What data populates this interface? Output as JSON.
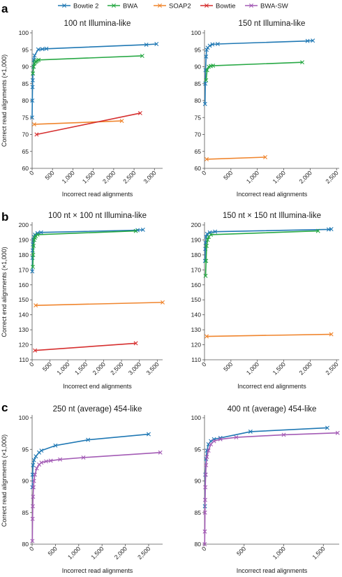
{
  "legend": [
    {
      "name": "Bowtie 2",
      "color": "#1f78b4"
    },
    {
      "name": "BWA",
      "color": "#27a844"
    },
    {
      "name": "SOAP2",
      "color": "#f0852d"
    },
    {
      "name": "Bowtie",
      "color": "#d62f2f"
    },
    {
      "name": "BWA-SW",
      "color": "#a35bb5"
    }
  ],
  "panel_labels": [
    "a",
    "b",
    "c"
  ],
  "chart_data": [
    {
      "type": "line",
      "panel": "a",
      "title": "100 nt Illumina-like",
      "xlabel": "Incorrect read alignments",
      "ylabel": "Correct read alignments (×1,000)",
      "xlim": [
        0,
        3200
      ],
      "ylim": [
        60,
        100
      ],
      "xticks": [
        0,
        500,
        1000,
        1500,
        2000,
        2500,
        3000
      ],
      "xtick_labels": [
        "0",
        "500",
        "1,000",
        "1,500",
        "2,000",
        "2,500",
        "3,000"
      ],
      "yticks": [
        60,
        65,
        70,
        75,
        80,
        85,
        90,
        95,
        100
      ],
      "ytick_labels": [
        "60",
        "65",
        "70",
        "75",
        "80",
        "85",
        "90",
        "95",
        "100"
      ],
      "series": [
        {
          "name": "Bowtie 2",
          "color": "#1f78b4",
          "x": [
            0,
            5,
            10,
            15,
            20,
            30,
            40,
            60,
            150,
            250,
            350,
            2800,
            3050
          ],
          "y": [
            75,
            80,
            84,
            86,
            88,
            90,
            92,
            93.3,
            95.1,
            95.2,
            95.3,
            96.5,
            96.7
          ]
        },
        {
          "name": "BWA",
          "color": "#27a844",
          "x": [
            20,
            40,
            60,
            80,
            100,
            130,
            160,
            2700
          ],
          "y": [
            88,
            90,
            91,
            91.4,
            91.6,
            91.8,
            92,
            93.2
          ]
        },
        {
          "name": "SOAP2",
          "color": "#f0852d",
          "x": [
            50,
            2200
          ],
          "y": [
            73,
            74
          ]
        },
        {
          "name": "Bowtie",
          "color": "#d62f2f",
          "x": [
            110,
            2650
          ],
          "y": [
            70,
            76.3
          ]
        }
      ]
    },
    {
      "type": "line",
      "panel": "a",
      "title": "150 nt Illumina-like",
      "xlabel": "Incorrect read alignments",
      "ylabel": "",
      "xlim": [
        0,
        2550
      ],
      "ylim": [
        60,
        100
      ],
      "xticks": [
        0,
        500,
        1000,
        1500,
        2000,
        2500
      ],
      "xtick_labels": [
        "0",
        "500",
        "1,000",
        "1,500",
        "2,000",
        "2,500"
      ],
      "yticks": [
        60,
        65,
        70,
        75,
        80,
        85,
        90,
        95,
        100
      ],
      "ytick_labels": [
        "60",
        "65",
        "70",
        "75",
        "80",
        "85",
        "90",
        "95",
        "100"
      ],
      "series": [
        {
          "name": "Bowtie 2",
          "color": "#1f78b4",
          "x": [
            10,
            15,
            20,
            30,
            40,
            60,
            100,
            150,
            250,
            1950,
            2050
          ],
          "y": [
            79,
            85,
            89,
            93,
            95,
            95.6,
            96.2,
            96.6,
            96.7,
            97.6,
            97.7
          ]
        },
        {
          "name": "BWA",
          "color": "#27a844",
          "x": [
            30,
            50,
            80,
            120,
            160,
            1850
          ],
          "y": [
            86,
            89,
            90,
            90.2,
            90.3,
            91.3
          ]
        },
        {
          "name": "SOAP2",
          "color": "#f0852d",
          "x": [
            40,
            1150
          ],
          "y": [
            62.7,
            63.3
          ]
        }
      ]
    },
    {
      "type": "line",
      "panel": "b",
      "title": "100 nt × 100 nt Illumina-like",
      "xlabel": "Incorrect end alignments",
      "ylabel": "Correct end alignments (×1,000)",
      "xlim": [
        0,
        3650
      ],
      "ylim": [
        110,
        200
      ],
      "xticks": [
        0,
        500,
        1000,
        1500,
        2000,
        2500,
        3000,
        3500
      ],
      "xtick_labels": [
        "0",
        "500",
        "1,000",
        "1,500",
        "2,000",
        "2,500",
        "3,000",
        "3,500"
      ],
      "yticks": [
        110,
        120,
        130,
        140,
        150,
        160,
        170,
        180,
        190,
        200
      ],
      "ytick_labels": [
        "110",
        "120",
        "130",
        "140",
        "150",
        "160",
        "170",
        "180",
        "190",
        "200"
      ],
      "series": [
        {
          "name": "Bowtie 2",
          "color": "#1f78b4",
          "x": [
            5,
            10,
            15,
            20,
            30,
            50,
            80,
            150,
            250,
            2950,
            3100
          ],
          "y": [
            169,
            178,
            183,
            187,
            190,
            192,
            193.5,
            194.5,
            195,
            196.5,
            196.8
          ]
        },
        {
          "name": "BWA",
          "color": "#27a844",
          "x": [
            20,
            30,
            40,
            60,
            80,
            100,
            150,
            2900
          ],
          "y": [
            172,
            180,
            186,
            190,
            191.5,
            192.5,
            193.5,
            196
          ]
        },
        {
          "name": "SOAP2",
          "color": "#f0852d",
          "x": [
            100,
            3650
          ],
          "y": [
            146.3,
            148.3
          ]
        },
        {
          "name": "Bowtie",
          "color": "#d62f2f",
          "x": [
            80,
            2900
          ],
          "y": [
            116.2,
            121
          ]
        }
      ]
    },
    {
      "type": "line",
      "panel": "b",
      "title": "150 nt × 150 nt Illumina-like",
      "xlabel": "Incorrect end alignments",
      "ylabel": "",
      "xlim": [
        0,
        2550
      ],
      "ylim": [
        110,
        200
      ],
      "xticks": [
        0,
        500,
        1000,
        1500,
        2000,
        2500
      ],
      "xtick_labels": [
        "0",
        "500",
        "1,000",
        "1,500",
        "2,000",
        "2,500"
      ],
      "yticks": [
        110,
        120,
        130,
        140,
        150,
        160,
        170,
        180,
        190,
        200
      ],
      "ytick_labels": [
        "110",
        "120",
        "130",
        "140",
        "150",
        "160",
        "170",
        "180",
        "190",
        "200"
      ],
      "series": [
        {
          "name": "Bowtie 2",
          "color": "#1f78b4",
          "x": [
            10,
            15,
            20,
            30,
            50,
            100,
            200,
            2350,
            2400
          ],
          "y": [
            176,
            184,
            188,
            192,
            194,
            195,
            195.5,
            197,
            197.2
          ]
        },
        {
          "name": "BWA",
          "color": "#27a844",
          "x": [
            20,
            30,
            40,
            60,
            80,
            120,
            2150
          ],
          "y": [
            166,
            176,
            186,
            190,
            192,
            193.5,
            196
          ]
        },
        {
          "name": "SOAP2",
          "color": "#f0852d",
          "x": [
            40,
            2400
          ],
          "y": [
            125.6,
            127
          ]
        }
      ]
    },
    {
      "type": "line",
      "panel": "c",
      "title": "250 nt (average) 454-like",
      "xlabel": "Incorrect read alignments",
      "ylabel": "Correct read alignments (×1,000)",
      "xlim": [
        0,
        2800
      ],
      "ylim": [
        80,
        100
      ],
      "xticks": [
        0,
        500,
        1000,
        1500,
        2000,
        2500
      ],
      "xtick_labels": [
        "0",
        "500",
        "1,000",
        "1,500",
        "2,000",
        "2,500"
      ],
      "yticks": [
        80,
        85,
        90,
        95,
        100
      ],
      "ytick_labels": [
        "80",
        "85",
        "90",
        "95",
        "100"
      ],
      "series": [
        {
          "name": "Bowtie 2",
          "color": "#1f78b4",
          "x": [
            5,
            10,
            20,
            40,
            80,
            150,
            200,
            500,
            1200,
            2500
          ],
          "y": [
            89,
            91,
            92.5,
            93.3,
            93.9,
            94.5,
            94.8,
            95.6,
            96.5,
            97.4
          ]
        },
        {
          "name": "BWA-SW",
          "color": "#a35bb5",
          "x": [
            5,
            10,
            15,
            20,
            30,
            40,
            60,
            100,
            150,
            200,
            300,
            400,
            600,
            1100,
            2750
          ],
          "y": [
            80.5,
            84,
            86,
            87.5,
            89,
            90,
            91,
            92,
            92.6,
            92.9,
            93.1,
            93.2,
            93.4,
            93.7,
            94.5
          ]
        }
      ]
    },
    {
      "type": "line",
      "panel": "c",
      "title": "400 nt (average) 454-like",
      "xlabel": "Incorrect read alignments",
      "ylabel": "",
      "xlim": [
        0,
        1700
      ],
      "ylim": [
        80,
        100
      ],
      "xticks": [
        0,
        500,
        1000,
        1500
      ],
      "xtick_labels": [
        "0",
        "500",
        "1,000",
        "1,500"
      ],
      "yticks": [
        80,
        85,
        90,
        95,
        100
      ],
      "ytick_labels": [
        "80",
        "85",
        "90",
        "95",
        "100"
      ],
      "series": [
        {
          "name": "Bowtie 2",
          "color": "#1f78b4",
          "x": [
            5,
            10,
            20,
            30,
            50,
            80,
            120,
            200,
            580,
            1550
          ],
          "y": [
            86,
            91,
            93.5,
            94.8,
            95.8,
            96.3,
            96.6,
            96.8,
            97.8,
            98.4
          ]
        },
        {
          "name": "BWA-SW",
          "color": "#a35bb5",
          "x": [
            2,
            4,
            6,
            8,
            10,
            15,
            20,
            30,
            50,
            80,
            120,
            200,
            400,
            1000,
            1680
          ],
          "y": [
            80,
            82,
            85,
            87,
            89,
            91,
            92.5,
            93.8,
            94.8,
            95.8,
            96.3,
            96.6,
            96.9,
            97.3,
            97.6
          ]
        }
      ]
    }
  ]
}
